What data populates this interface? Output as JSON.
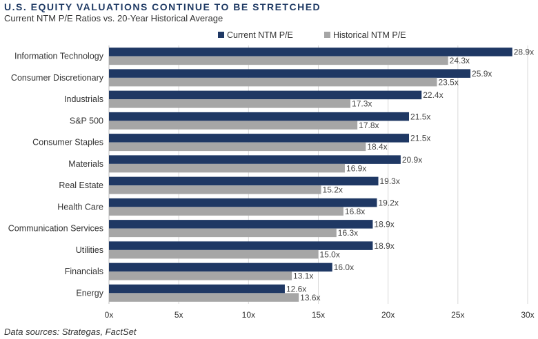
{
  "chart_data": {
    "type": "bar",
    "orientation": "horizontal",
    "title": "U.S. EQUITY VALUATIONS CONTINUE TO BE STRETCHED",
    "subtitle": "Current NTM P/E Ratios vs. 20-Year Historical Average",
    "categories": [
      "Information Technology",
      "Consumer Discretionary",
      "Industrials",
      "S&P 500",
      "Consumer Staples",
      "Materials",
      "Real Estate",
      "Health Care",
      "Communication Services",
      "Utilities",
      "Financials",
      "Energy"
    ],
    "series": [
      {
        "name": "Current NTM P/E",
        "color": "#1f3864",
        "values": [
          28.9,
          25.9,
          22.4,
          21.5,
          21.5,
          20.9,
          19.3,
          19.2,
          18.9,
          18.9,
          16.0,
          12.6
        ],
        "labels": [
          "28.9x",
          "25.9x",
          "22.4x",
          "21.5x",
          "21.5x",
          "20.9x",
          "19.3x",
          "19.2x",
          "18.9x",
          "18.9x",
          "16.0x",
          "12.6x"
        ]
      },
      {
        "name": "Historical NTM P/E",
        "color": "#a6a6a6",
        "values": [
          24.3,
          23.5,
          17.3,
          17.8,
          18.4,
          16.9,
          15.2,
          16.8,
          16.3,
          15.0,
          13.1,
          13.6
        ],
        "labels": [
          "24.3x",
          "23.5x",
          "17.3x",
          "17.8x",
          "18.4x",
          "16.9x",
          "15.2x",
          "16.8x",
          "16.3x",
          "15.0x",
          "13.1x",
          "13.6x"
        ]
      }
    ],
    "xlim": [
      0,
      30
    ],
    "xticks": [
      0,
      5,
      10,
      15,
      20,
      25,
      30
    ],
    "xtick_labels": [
      "0x",
      "5x",
      "10x",
      "15x",
      "20x",
      "25x",
      "30x"
    ],
    "grid": "vertical",
    "legend": "top"
  },
  "source": "Data sources: Strategas, FactSet"
}
